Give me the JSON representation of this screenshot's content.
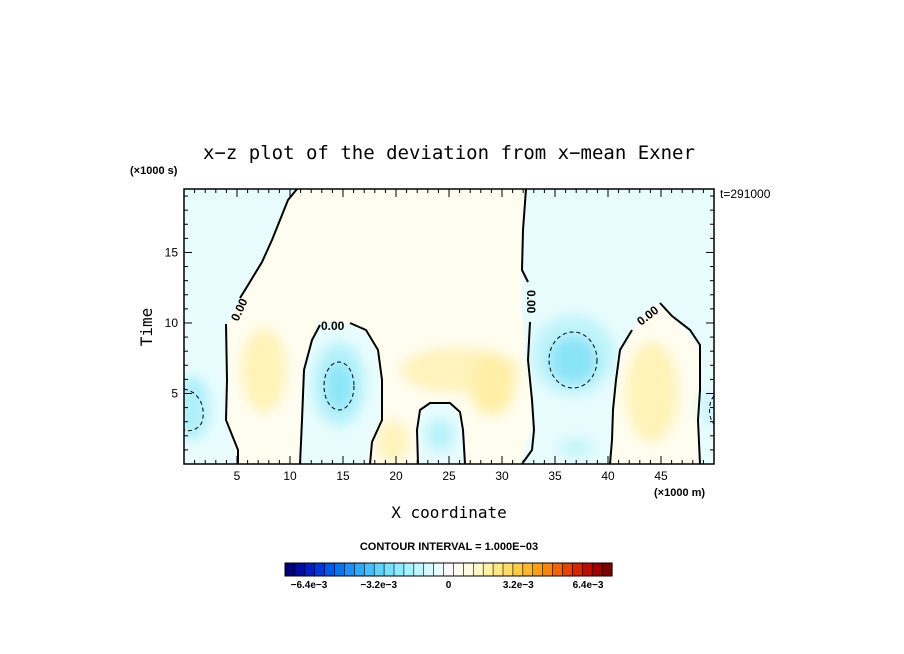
{
  "chart_data": {
    "type": "contour",
    "title": "x−z plot of the deviation from x−mean Exner",
    "xlabel": "X coordinate",
    "ylabel": "Time",
    "x_unit": "(×1000 m)",
    "y_unit": "(×1000 s)",
    "time_annotation": "t=291000",
    "xlim": [
      0,
      50
    ],
    "ylim": [
      0,
      19.5
    ],
    "x_ticks": [
      5,
      10,
      15,
      20,
      25,
      30,
      35,
      40,
      45
    ],
    "y_ticks": [
      5,
      10,
      15
    ],
    "contour_interval_text": "CONTOUR INTERVAL = 1.000E−03",
    "zero_contour_label": "0.00",
    "colorbar": {
      "min": -0.0075,
      "max": 0.0075,
      "tick_labels": [
        "−6.4e−3",
        "−3.2e−3",
        "0",
        "3.2e−3",
        "6.4e−3"
      ],
      "tick_values": [
        -0.0064,
        -0.0032,
        0,
        0.0032,
        0.0064
      ],
      "colors": [
        "#00007a",
        "#000ca8",
        "#001ec6",
        "#0038dc",
        "#0058ec",
        "#0474f4",
        "#1a90f8",
        "#30a8fa",
        "#46c0fc",
        "#5cd4fc",
        "#74e2fd",
        "#8cecfd",
        "#a6f2fe",
        "#bef7fe",
        "#d6fafe",
        "#eafdfe",
        "#fafafa",
        "#fffef2",
        "#fffce2",
        "#fff8c8",
        "#fff2a6",
        "#ffe884",
        "#ffdc62",
        "#ffcc44",
        "#ffb82a",
        "#ffa014",
        "#fc8406",
        "#f46400",
        "#e84400",
        "#d82600",
        "#c00c00",
        "#a00000",
        "#800000"
      ]
    },
    "positive_regions_approx": [
      {
        "x_center": 8,
        "t_center": 6,
        "max": 0.001
      },
      {
        "x_center": 29,
        "t_center": 6,
        "max": 0.0012
      },
      {
        "x_center": 44,
        "t_center": 6,
        "max": 0.0012
      }
    ],
    "negative_regions_approx": [
      {
        "x_center": 1,
        "t_center": 4,
        "min": -0.002
      },
      {
        "x_center": 14.5,
        "t_center": 6,
        "min": -0.0023
      },
      {
        "x_center": 36.8,
        "t_center": 7.2,
        "min": -0.0028
      },
      {
        "x_center": 23.5,
        "t_center": 2.5,
        "min": -0.001
      }
    ]
  }
}
